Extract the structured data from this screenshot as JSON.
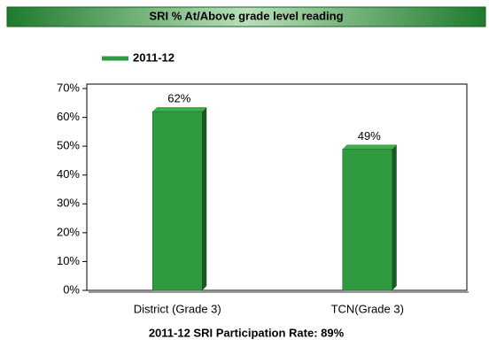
{
  "chart_data": {
    "type": "bar",
    "title": "SRI % At/Above grade level reading",
    "categories": [
      "District (Grade 3)",
      "TCN(Grade 3)"
    ],
    "series": [
      {
        "name": "2011-12",
        "color": "#2f9a3f",
        "values": [
          62,
          49
        ],
        "value_labels": [
          "62%",
          "49%"
        ]
      }
    ],
    "ylim": [
      0,
      70
    ],
    "yticks": [
      {
        "value": 0,
        "label": "0%"
      },
      {
        "value": 10,
        "label": "10%"
      },
      {
        "value": 20,
        "label": "20%"
      },
      {
        "value": 30,
        "label": "30%"
      },
      {
        "value": 40,
        "label": "40%"
      },
      {
        "value": 50,
        "label": "50%"
      },
      {
        "value": 60,
        "label": "60%"
      },
      {
        "value": 70,
        "label": "70%"
      }
    ],
    "xlabel": "2011-12 SRI Participation Rate: 89%",
    "legend": "top-left"
  }
}
